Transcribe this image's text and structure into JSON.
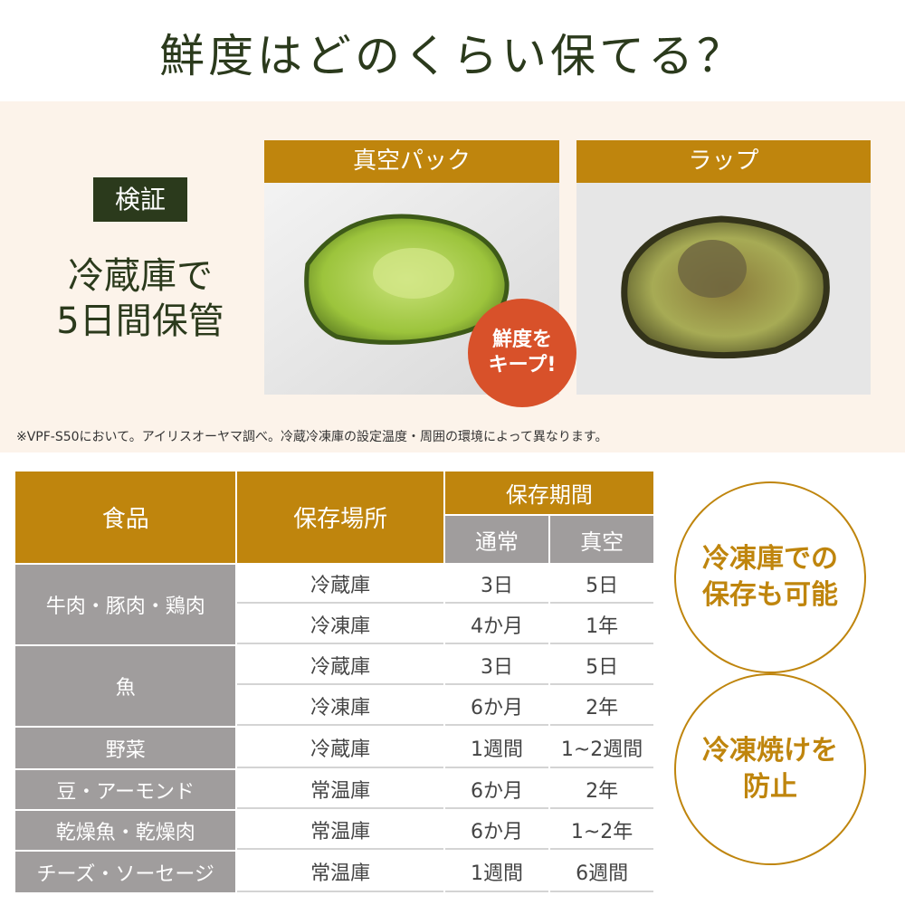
{
  "title": "鮮度はどのくらい保てる？",
  "test": {
    "badge": "検証",
    "line1": "冷蔵庫で",
    "line2": "5日間保管"
  },
  "photos": [
    {
      "label": "真空パック"
    },
    {
      "label": "ラップ"
    }
  ],
  "stamp": {
    "line1": "鮮度を",
    "line2": "キープ!"
  },
  "note": "※VPF-S50において。アイリスオーヤマ調べ。冷蔵冷凍庫の設定温度・周囲の環境によって異なります。",
  "table": {
    "headers": {
      "food": "食品",
      "place": "保存場所",
      "period": "保存期間",
      "normal": "通常",
      "vacuum": "真空"
    },
    "rows": [
      {
        "food": "牛肉・豚肉・鶏肉",
        "place": "冷蔵庫",
        "normal": "3日",
        "vacuum": "5日"
      },
      {
        "food": "",
        "place": "冷凍庫",
        "normal": "4か月",
        "vacuum": "1年"
      },
      {
        "food": "魚",
        "place": "冷蔵庫",
        "normal": "3日",
        "vacuum": "5日"
      },
      {
        "food": "",
        "place": "冷凍庫",
        "normal": "6か月",
        "vacuum": "2年"
      },
      {
        "food": "野菜",
        "place": "冷蔵庫",
        "normal": "1週間",
        "vacuum": "1~2週間"
      },
      {
        "food": "豆・アーモンド",
        "place": "常温庫",
        "normal": "6か月",
        "vacuum": "2年"
      },
      {
        "food": "乾燥魚・乾燥肉",
        "place": "常温庫",
        "normal": "6か月",
        "vacuum": "1~2年"
      },
      {
        "food": "チーズ・ソーセージ",
        "place": "常温庫",
        "normal": "1週間",
        "vacuum": "6週間"
      }
    ]
  },
  "circles": [
    {
      "line1": "冷凍庫での",
      "line2": "保存も可能"
    },
    {
      "line1": "冷凍焼けを",
      "line2": "防止"
    }
  ],
  "colors": {
    "gold": "#bf850d",
    "green": "#2b3a1c",
    "red": "#d8512a",
    "grey": "#a09d9d",
    "beige": "#fcf3ea"
  }
}
